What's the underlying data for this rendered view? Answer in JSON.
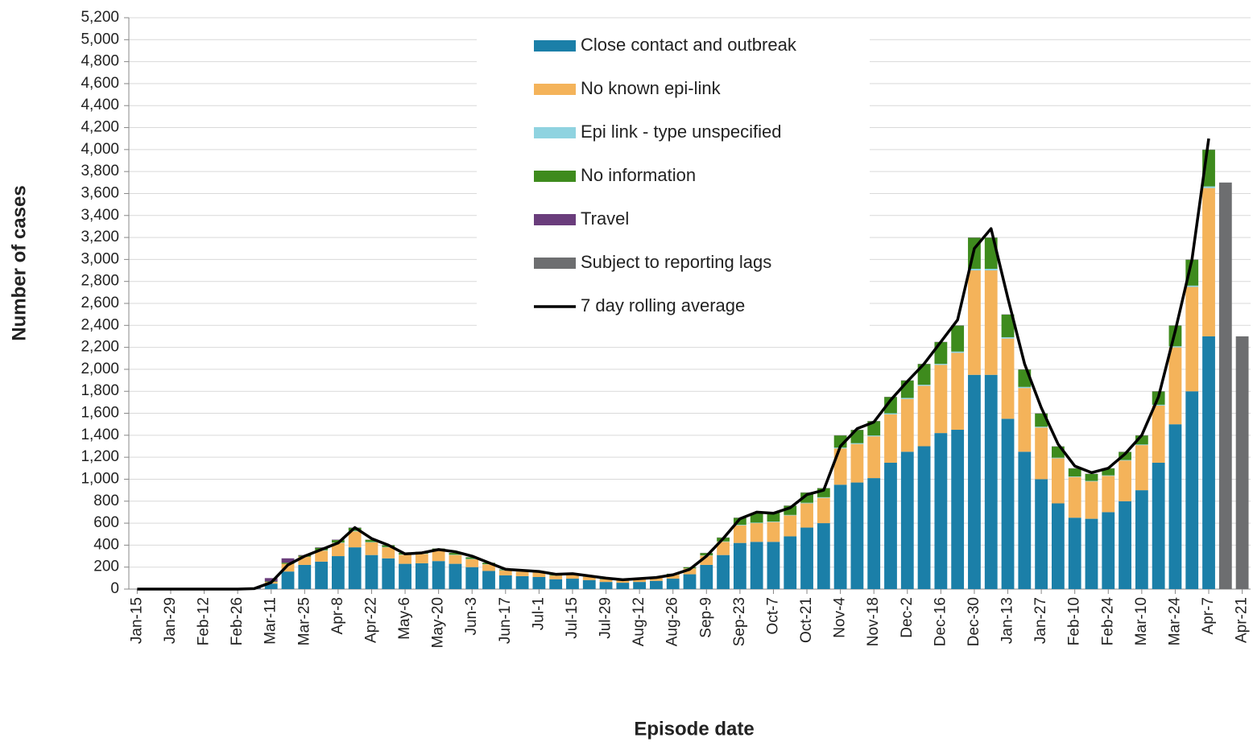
{
  "chart_data": {
    "type": "bar",
    "y_label": "Number of cases",
    "x_label": "Episode date",
    "categories": [
      "Jan-15",
      null,
      "Jan-29",
      null,
      "Feb-12",
      null,
      "Feb-26",
      null,
      "Mar-11",
      null,
      "Mar-25",
      null,
      "Apr-8",
      null,
      "Apr-22",
      null,
      "May-6",
      null,
      "May-20",
      null,
      "Jun-3",
      null,
      "Jun-17",
      null,
      "Jul-1",
      null,
      "Jul-15",
      null,
      "Jul-29",
      null,
      "Aug-12",
      null,
      "Aug-26",
      null,
      "Sep-9",
      null,
      "Sep-23",
      null,
      "Oct-7",
      null,
      "Oct-21",
      null,
      "Nov-4",
      null,
      "Nov-18",
      null,
      "Dec-2",
      null,
      "Dec-16",
      null,
      "Dec-30",
      null,
      "Jan-13",
      null,
      "Jan-27",
      null,
      "Feb-10",
      null,
      "Feb-24",
      null,
      "Mar-10",
      null,
      "Mar-24",
      null,
      "Apr-7",
      null,
      "Apr-21"
    ],
    "series": [
      {
        "name": "Close contact and outbreak",
        "color": "#1b7fa8",
        "type": "bar",
        "values": [
          0,
          0,
          0,
          0,
          0,
          0,
          1,
          3,
          50,
          160,
          220,
          250,
          300,
          380,
          310,
          280,
          230,
          235,
          255,
          230,
          200,
          165,
          125,
          118,
          110,
          90,
          95,
          82,
          65,
          58,
          65,
          75,
          95,
          135,
          220,
          310,
          420,
          430,
          430,
          480,
          560,
          600,
          950,
          970,
          1010,
          1150,
          1250,
          1300,
          1420,
          1450,
          1950,
          1950,
          1550,
          1250,
          1000,
          780,
          650,
          640,
          700,
          800,
          900,
          1150,
          1500,
          1800,
          2300,
          0,
          0
        ]
      },
      {
        "name": "No known epi-link",
        "color": "#f4b35a",
        "type": "bar",
        "values": [
          0,
          0,
          0,
          0,
          0,
          0,
          0,
          1,
          15,
          70,
          75,
          100,
          120,
          145,
          115,
          100,
          82,
          85,
          92,
          80,
          72,
          60,
          45,
          42,
          40,
          32,
          36,
          30,
          24,
          22,
          24,
          28,
          36,
          52,
          85,
          120,
          160,
          170,
          180,
          190,
          220,
          230,
          330,
          350,
          380,
          440,
          480,
          550,
          620,
          700,
          950,
          950,
          730,
          580,
          470,
          410,
          370,
          340,
          330,
          370,
          410,
          520,
          700,
          950,
          1350,
          0,
          0
        ]
      },
      {
        "name": "Epi link - type unspecified",
        "color": "#8fd3e0",
        "type": "bar",
        "values": [
          0,
          0,
          0,
          0,
          0,
          0,
          0,
          0,
          0,
          0,
          0,
          4,
          4,
          5,
          4,
          3,
          3,
          3,
          3,
          3,
          3,
          2,
          2,
          2,
          2,
          1,
          1,
          1,
          1,
          1,
          1,
          1,
          1,
          2,
          3,
          4,
          5,
          5,
          5,
          5,
          6,
          6,
          8,
          8,
          8,
          10,
          10,
          10,
          10,
          12,
          15,
          15,
          12,
          10,
          8,
          6,
          5,
          5,
          5,
          5,
          6,
          8,
          10,
          12,
          15,
          0,
          0
        ]
      },
      {
        "name": "No information",
        "color": "#3e8b1d",
        "type": "bar",
        "values": [
          0,
          0,
          0,
          0,
          0,
          0,
          0,
          0,
          5,
          10,
          10,
          22,
          22,
          27,
          20,
          16,
          14,
          16,
          19,
          16,
          14,
          12,
          7,
          7,
          7,
          6,
          7,
          6,
          4,
          3,
          4,
          5,
          7,
          10,
          20,
          34,
          63,
          83,
          83,
          83,
          92,
          82,
          110,
          120,
          130,
          148,
          158,
          188,
          198,
          236,
          283,
          283,
          206,
          158,
          120,
          102,
          73,
          63,
          63,
          73,
          82,
          120,
          188,
          236,
          333,
          0,
          0
        ]
      },
      {
        "name": "Travel",
        "color": "#6a3d7c",
        "type": "bar",
        "values": [
          0,
          0,
          0,
          0,
          0,
          0,
          1,
          6,
          30,
          40,
          5,
          4,
          4,
          3,
          1,
          1,
          1,
          1,
          1,
          1,
          1,
          1,
          1,
          1,
          1,
          1,
          1,
          1,
          1,
          1,
          1,
          1,
          1,
          1,
          2,
          2,
          2,
          2,
          2,
          2,
          2,
          2,
          2,
          2,
          2,
          2,
          2,
          2,
          2,
          2,
          2,
          2,
          2,
          2,
          2,
          2,
          2,
          2,
          2,
          2,
          2,
          2,
          2,
          2,
          2,
          0,
          0
        ]
      },
      {
        "name": "Subject to reporting lags",
        "color": "#6d6e70",
        "type": "bar",
        "values": [
          0,
          0,
          0,
          0,
          0,
          0,
          0,
          0,
          0,
          0,
          0,
          0,
          0,
          0,
          0,
          0,
          0,
          0,
          0,
          0,
          0,
          0,
          0,
          0,
          0,
          0,
          0,
          0,
          0,
          0,
          0,
          0,
          0,
          0,
          0,
          0,
          0,
          0,
          0,
          0,
          0,
          0,
          0,
          0,
          0,
          0,
          0,
          0,
          0,
          0,
          0,
          0,
          0,
          0,
          0,
          0,
          0,
          0,
          0,
          0,
          0,
          0,
          0,
          0,
          0,
          3700,
          2300
        ]
      },
      {
        "name": "7 day rolling average",
        "color": "#000000",
        "type": "line",
        "values": [
          0,
          0,
          0,
          0,
          0,
          0,
          0,
          5,
          60,
          220,
          300,
          360,
          420,
          560,
          460,
          400,
          320,
          330,
          360,
          340,
          300,
          240,
          180,
          170,
          160,
          135,
          140,
          120,
          100,
          85,
          95,
          105,
          130,
          180,
          300,
          460,
          640,
          700,
          690,
          740,
          860,
          900,
          1300,
          1460,
          1520,
          1720,
          1890,
          2050,
          2250,
          2450,
          3100,
          3280,
          2650,
          2050,
          1650,
          1320,
          1120,
          1060,
          1100,
          1230,
          1400,
          1750,
          2350,
          3000,
          4100,
          null,
          null
        ]
      }
    ],
    "ylim": [
      0,
      5200
    ],
    "yticks": [
      0,
      200,
      400,
      600,
      800,
      {
        "value": 1000,
        "label": "1,000"
      },
      {
        "value": 1200,
        "label": "1,200"
      },
      {
        "value": 1400,
        "label": "1,400"
      },
      {
        "value": 1600,
        "label": "1,600"
      },
      {
        "value": 1800,
        "label": "1,800"
      },
      {
        "value": 2000,
        "label": "2,000"
      },
      {
        "value": 2200,
        "label": "2,200"
      },
      {
        "value": 2400,
        "label": "2,400"
      },
      {
        "value": 2600,
        "label": "2,600"
      },
      {
        "value": 2800,
        "label": "2,800"
      },
      {
        "value": 3000,
        "label": "3,000"
      },
      {
        "value": 3200,
        "label": "3,200"
      },
      {
        "value": 3400,
        "label": "3,400"
      },
      {
        "value": 3600,
        "label": "3,600"
      },
      {
        "value": 3800,
        "label": "3,800"
      },
      {
        "value": 4000,
        "label": "4,000"
      },
      {
        "value": 4200,
        "label": "4,200"
      },
      {
        "value": 4400,
        "label": "4,400"
      },
      {
        "value": 4600,
        "label": "4,600"
      },
      {
        "value": 4800,
        "label": "4,800"
      },
      {
        "value": 5000,
        "label": "5,000"
      },
      {
        "value": 5200,
        "label": "5,200"
      }
    ],
    "grid": true
  }
}
